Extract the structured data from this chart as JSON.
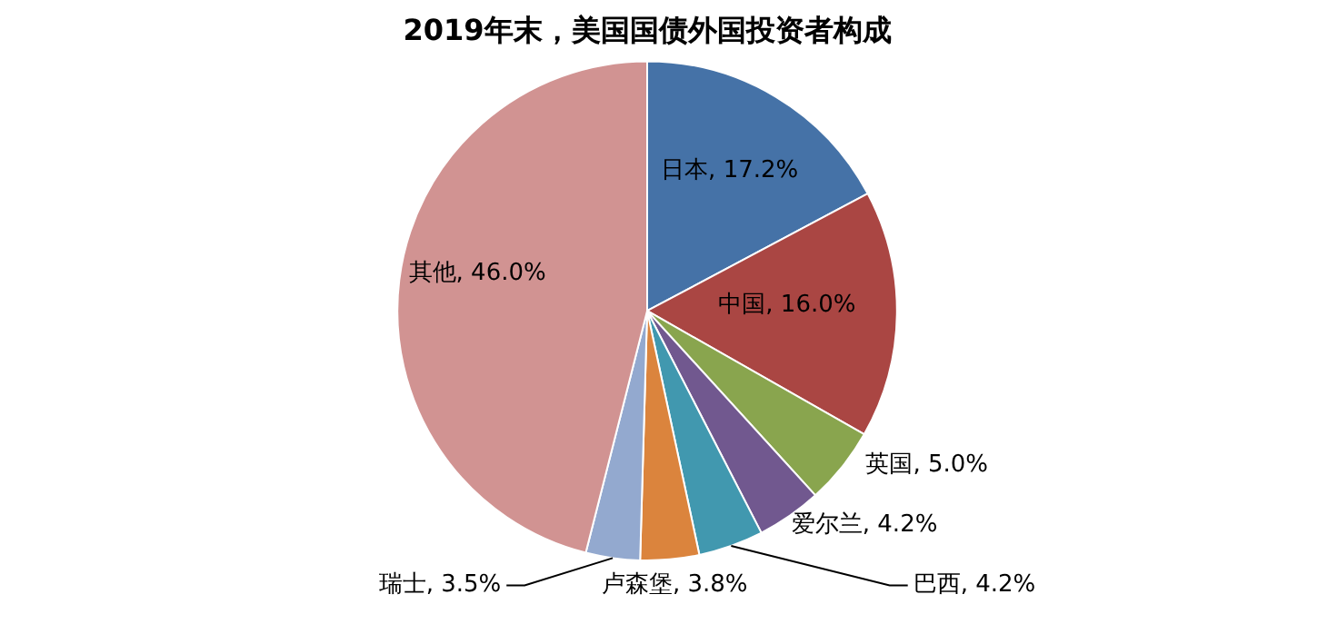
{
  "chart_data": {
    "type": "pie",
    "title": "2019年末，美国国债外国投资者构成",
    "categories": [
      "日本",
      "中国",
      "英国",
      "爱尔兰",
      "巴西",
      "卢森堡",
      "瑞士",
      "其他"
    ],
    "values": [
      17.2,
      16.0,
      5.0,
      4.2,
      4.2,
      3.8,
      3.5,
      46.0
    ],
    "value_labels": [
      "17.2%",
      "16.0%",
      "5.0%",
      "4.2%",
      "4.2%",
      "3.8%",
      "3.5%",
      "46.0%"
    ],
    "colors": [
      "#4572a7",
      "#aa4643",
      "#89a54e",
      "#71588f",
      "#4198af",
      "#db843d",
      "#93a9cf",
      "#d19392"
    ],
    "legend": false
  }
}
